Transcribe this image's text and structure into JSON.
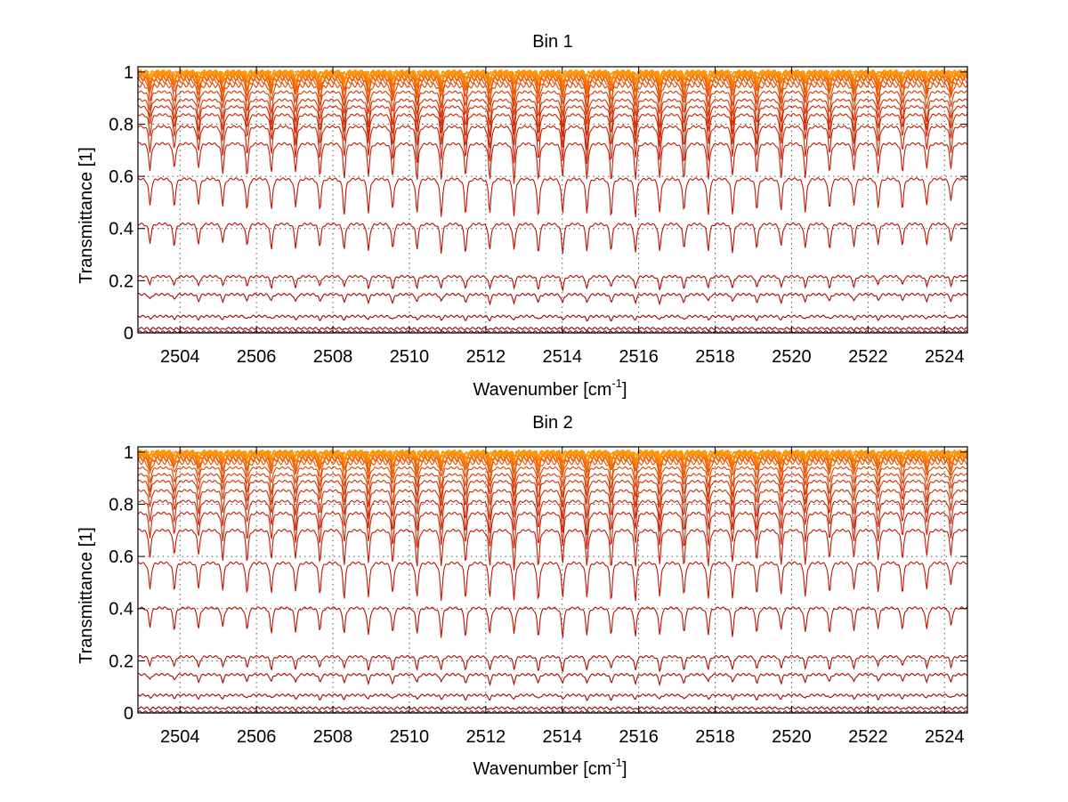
{
  "chart_data": [
    {
      "type": "line",
      "title": "Bin 1",
      "xlabel": "Wavenumber [cm",
      "xlabel_sup": "-1",
      "xlabel_end": "]",
      "ylabel": "Transmittance [1]",
      "xlim": [
        2502.9,
        2524.6
      ],
      "ylim": [
        0,
        1.02
      ],
      "xticks": [
        2504,
        2506,
        2508,
        2510,
        2512,
        2514,
        2516,
        2518,
        2520,
        2522,
        2524
      ],
      "yticks": [
        0,
        0.2,
        0.4,
        0.6,
        0.8,
        1
      ],
      "grid": true,
      "line_spacing": 0.635,
      "series": [
        {
          "baseline": 1.0,
          "depth": 0.012,
          "color": "#ff9900"
        },
        {
          "baseline": 0.998,
          "depth": 0.02,
          "color": "#ff8c00"
        },
        {
          "baseline": 0.994,
          "depth": 0.03,
          "color": "#ff7f00"
        },
        {
          "baseline": 0.99,
          "depth": 0.04,
          "color": "#fa6f00"
        },
        {
          "baseline": 0.98,
          "depth": 0.055,
          "color": "#f06000"
        },
        {
          "baseline": 0.97,
          "depth": 0.065,
          "color": "#e85000"
        },
        {
          "baseline": 0.955,
          "depth": 0.075,
          "color": "#e04400"
        },
        {
          "baseline": 0.93,
          "depth": 0.085,
          "color": "#d83a00"
        },
        {
          "baseline": 0.9,
          "depth": 0.095,
          "color": "#d43000"
        },
        {
          "baseline": 0.875,
          "depth": 0.105,
          "color": "#d02a00"
        },
        {
          "baseline": 0.845,
          "depth": 0.115,
          "color": "#cc2400"
        },
        {
          "baseline": 0.8,
          "depth": 0.125,
          "color": "#c81e00"
        },
        {
          "baseline": 0.735,
          "depth": 0.13,
          "color": "#c41800"
        },
        {
          "baseline": 0.6,
          "depth": 0.13,
          "color": "#c01400"
        },
        {
          "baseline": 0.425,
          "depth": 0.1,
          "color": "#b81000"
        },
        {
          "baseline": 0.22,
          "depth": 0.045,
          "color": "#b00c00"
        },
        {
          "baseline": 0.15,
          "depth": 0.03,
          "color": "#a80800"
        },
        {
          "baseline": 0.065,
          "depth": 0.014,
          "color": "#a00600"
        },
        {
          "baseline": 0.018,
          "depth": 0.005,
          "color": "#900400"
        },
        {
          "baseline": 0.004,
          "depth": 0.001,
          "color": "#7a0000"
        }
      ]
    },
    {
      "type": "line",
      "title": "Bin 2",
      "xlabel": "Wavenumber [cm",
      "xlabel_sup": "-1",
      "xlabel_end": "]",
      "ylabel": "Transmittance [1]",
      "xlim": [
        2502.9,
        2524.6
      ],
      "ylim": [
        0,
        1.02
      ],
      "xticks": [
        2504,
        2506,
        2508,
        2510,
        2512,
        2514,
        2516,
        2518,
        2520,
        2522,
        2524
      ],
      "yticks": [
        0,
        0.2,
        0.4,
        0.6,
        0.8,
        1
      ],
      "grid": true,
      "line_spacing": 0.635,
      "series": [
        {
          "baseline": 1.0,
          "depth": 0.012,
          "color": "#ff9900"
        },
        {
          "baseline": 0.998,
          "depth": 0.02,
          "color": "#ff8c00"
        },
        {
          "baseline": 0.994,
          "depth": 0.03,
          "color": "#ff7f00"
        },
        {
          "baseline": 0.988,
          "depth": 0.04,
          "color": "#fa6f00"
        },
        {
          "baseline": 0.978,
          "depth": 0.05,
          "color": "#f06000"
        },
        {
          "baseline": 0.965,
          "depth": 0.06,
          "color": "#e85000"
        },
        {
          "baseline": 0.945,
          "depth": 0.07,
          "color": "#e04400"
        },
        {
          "baseline": 0.92,
          "depth": 0.08,
          "color": "#d83a00"
        },
        {
          "baseline": 0.895,
          "depth": 0.09,
          "color": "#d43000"
        },
        {
          "baseline": 0.86,
          "depth": 0.1,
          "color": "#d02a00"
        },
        {
          "baseline": 0.82,
          "depth": 0.11,
          "color": "#cc2400"
        },
        {
          "baseline": 0.775,
          "depth": 0.12,
          "color": "#c81e00"
        },
        {
          "baseline": 0.71,
          "depth": 0.13,
          "color": "#c41800"
        },
        {
          "baseline": 0.585,
          "depth": 0.13,
          "color": "#c01400"
        },
        {
          "baseline": 0.41,
          "depth": 0.1,
          "color": "#b81000"
        },
        {
          "baseline": 0.22,
          "depth": 0.05,
          "color": "#b00c00"
        },
        {
          "baseline": 0.15,
          "depth": 0.032,
          "color": "#a80800"
        },
        {
          "baseline": 0.07,
          "depth": 0.016,
          "color": "#a00600"
        },
        {
          "baseline": 0.02,
          "depth": 0.006,
          "color": "#900400"
        },
        {
          "baseline": 0.004,
          "depth": 0.001,
          "color": "#7a0000"
        }
      ]
    }
  ]
}
